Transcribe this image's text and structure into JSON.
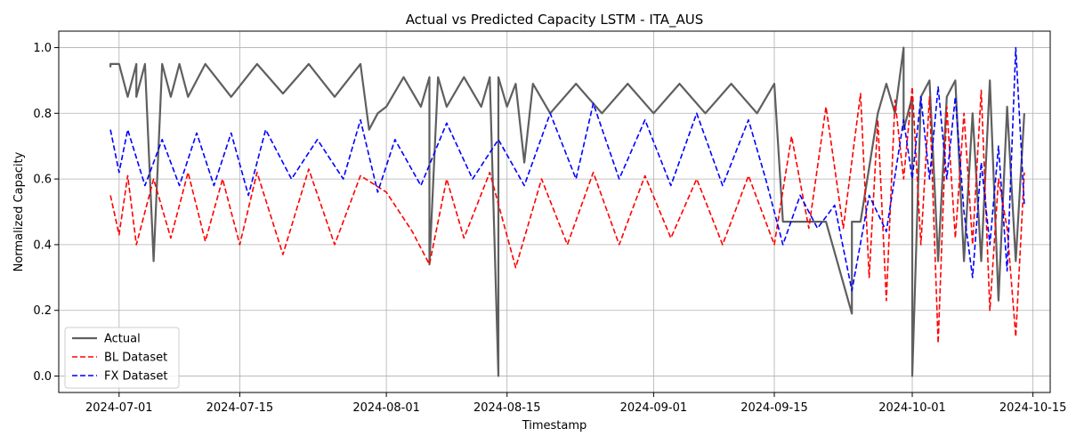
{
  "chart_data": {
    "type": "line",
    "title": "Actual vs Predicted Capacity LSTM - ITA_AUS",
    "xlabel": "Timestamp",
    "ylabel": "Normalized Capacity",
    "xlim": [
      "2024-06-24",
      "2024-10-17"
    ],
    "ylim": [
      -0.05,
      1.05
    ],
    "x_ticks": [
      "2024-07-01",
      "2024-07-15",
      "2024-08-01",
      "2024-08-15",
      "2024-09-01",
      "2024-09-15",
      "2024-10-01",
      "2024-10-15"
    ],
    "y_ticks": [
      0.0,
      0.2,
      0.4,
      0.6,
      0.8,
      1.0
    ],
    "y_tick_labels": [
      "0.0",
      "0.2",
      "0.4",
      "0.6",
      "0.8",
      "1.0"
    ],
    "grid": true,
    "legend_position": "lower-left",
    "series": [
      {
        "name": "Actual",
        "color": "#5f5f5f",
        "style": "solid",
        "x": [
          "2024-06-30",
          "2024-06-30",
          "2024-07-01",
          "2024-07-02",
          "2024-07-03",
          "2024-07-03",
          "2024-07-04",
          "2024-07-05",
          "2024-07-06",
          "2024-07-07",
          "2024-07-08",
          "2024-07-09",
          "2024-07-11",
          "2024-07-14",
          "2024-07-17",
          "2024-07-20",
          "2024-07-23",
          "2024-07-26",
          "2024-07-29",
          "2024-07-30",
          "2024-07-31",
          "2024-08-01",
          "2024-08-03",
          "2024-08-05",
          "2024-08-06",
          "2024-08-06",
          "2024-08-07",
          "2024-08-08",
          "2024-08-10",
          "2024-08-12",
          "2024-08-13",
          "2024-08-14",
          "2024-08-14",
          "2024-08-15",
          "2024-08-16",
          "2024-08-17",
          "2024-08-18",
          "2024-08-20",
          "2024-08-23",
          "2024-08-26",
          "2024-08-29",
          "2024-09-01",
          "2024-09-04",
          "2024-09-07",
          "2024-09-10",
          "2024-09-13",
          "2024-09-15",
          "2024-09-16",
          "2024-09-18",
          "2024-09-21",
          "2024-09-24",
          "2024-09-24",
          "2024-09-25",
          "2024-09-27",
          "2024-09-28",
          "2024-09-29",
          "2024-09-30",
          "2024-09-30",
          "2024-10-01",
          "2024-10-01",
          "2024-10-02",
          "2024-10-03",
          "2024-10-04",
          "2024-10-05",
          "2024-10-06",
          "2024-10-07",
          "2024-10-08",
          "2024-10-09",
          "2024-10-10",
          "2024-10-11",
          "2024-10-12",
          "2024-10-13",
          "2024-10-14"
        ],
        "y": [
          0.94,
          0.95,
          0.95,
          0.85,
          0.95,
          0.85,
          0.95,
          0.35,
          0.95,
          0.85,
          0.95,
          0.85,
          0.95,
          0.85,
          0.95,
          0.86,
          0.95,
          0.85,
          0.95,
          0.75,
          0.8,
          0.82,
          0.91,
          0.82,
          0.91,
          0.34,
          0.91,
          0.82,
          0.91,
          0.82,
          0.91,
          0.0,
          0.91,
          0.82,
          0.89,
          0.65,
          0.89,
          0.8,
          0.89,
          0.8,
          0.89,
          0.8,
          0.89,
          0.8,
          0.89,
          0.8,
          0.89,
          0.47,
          0.47,
          0.47,
          0.19,
          0.47,
          0.47,
          0.8,
          0.89,
          0.8,
          1.0,
          0.75,
          0.85,
          0.0,
          0.85,
          0.9,
          0.35,
          0.85,
          0.9,
          0.35,
          0.8,
          0.35,
          0.9,
          0.23,
          0.82,
          0.35,
          0.8
        ]
      },
      {
        "name": "BL Dataset",
        "color": "#ff0000",
        "style": "dashed",
        "x": [
          "2024-06-30",
          "2024-07-01",
          "2024-07-02",
          "2024-07-03",
          "2024-07-05",
          "2024-07-07",
          "2024-07-09",
          "2024-07-11",
          "2024-07-13",
          "2024-07-15",
          "2024-07-17",
          "2024-07-20",
          "2024-07-23",
          "2024-07-26",
          "2024-07-29",
          "2024-08-01",
          "2024-08-04",
          "2024-08-06",
          "2024-08-08",
          "2024-08-10",
          "2024-08-13",
          "2024-08-16",
          "2024-08-19",
          "2024-08-22",
          "2024-08-25",
          "2024-08-28",
          "2024-08-31",
          "2024-09-03",
          "2024-09-06",
          "2024-09-09",
          "2024-09-12",
          "2024-09-15",
          "2024-09-17",
          "2024-09-19",
          "2024-09-21",
          "2024-09-23",
          "2024-09-25",
          "2024-09-26",
          "2024-09-27",
          "2024-09-28",
          "2024-09-29",
          "2024-09-30",
          "2024-10-01",
          "2024-10-02",
          "2024-10-03",
          "2024-10-04",
          "2024-10-05",
          "2024-10-06",
          "2024-10-07",
          "2024-10-08",
          "2024-10-09",
          "2024-10-10",
          "2024-10-11",
          "2024-10-12",
          "2024-10-13",
          "2024-10-14"
        ],
        "y": [
          0.55,
          0.43,
          0.61,
          0.4,
          0.6,
          0.42,
          0.62,
          0.41,
          0.6,
          0.4,
          0.62,
          0.37,
          0.63,
          0.4,
          0.61,
          0.56,
          0.44,
          0.34,
          0.6,
          0.42,
          0.62,
          0.33,
          0.6,
          0.4,
          0.62,
          0.4,
          0.61,
          0.42,
          0.6,
          0.4,
          0.61,
          0.4,
          0.73,
          0.45,
          0.82,
          0.45,
          0.86,
          0.3,
          0.78,
          0.23,
          0.84,
          0.6,
          0.88,
          0.4,
          0.85,
          0.1,
          0.82,
          0.42,
          0.8,
          0.4,
          0.87,
          0.2,
          0.6,
          0.45,
          0.12,
          0.62
        ]
      },
      {
        "name": "FX Dataset",
        "color": "#0000ff",
        "style": "dashed",
        "x": [
          "2024-06-30",
          "2024-07-01",
          "2024-07-02",
          "2024-07-04",
          "2024-07-06",
          "2024-07-08",
          "2024-07-10",
          "2024-07-12",
          "2024-07-14",
          "2024-07-16",
          "2024-07-18",
          "2024-07-21",
          "2024-07-24",
          "2024-07-27",
          "2024-07-29",
          "2024-07-31",
          "2024-08-02",
          "2024-08-05",
          "2024-08-08",
          "2024-08-11",
          "2024-08-14",
          "2024-08-17",
          "2024-08-20",
          "2024-08-23",
          "2024-08-25",
          "2024-08-28",
          "2024-08-31",
          "2024-09-03",
          "2024-09-06",
          "2024-09-09",
          "2024-09-12",
          "2024-09-14",
          "2024-09-16",
          "2024-09-18",
          "2024-09-20",
          "2024-09-22",
          "2024-09-24",
          "2024-09-26",
          "2024-09-28",
          "2024-09-30",
          "2024-10-01",
          "2024-10-02",
          "2024-10-03",
          "2024-10-04",
          "2024-10-05",
          "2024-10-06",
          "2024-10-07",
          "2024-10-08",
          "2024-10-09",
          "2024-10-10",
          "2024-10-11",
          "2024-10-12",
          "2024-10-13",
          "2024-10-14"
        ],
        "y": [
          0.75,
          0.62,
          0.75,
          0.58,
          0.72,
          0.58,
          0.74,
          0.58,
          0.74,
          0.55,
          0.75,
          0.6,
          0.72,
          0.6,
          0.78,
          0.56,
          0.72,
          0.58,
          0.77,
          0.6,
          0.72,
          0.58,
          0.8,
          0.6,
          0.83,
          0.6,
          0.78,
          0.58,
          0.8,
          0.58,
          0.78,
          0.6,
          0.4,
          0.55,
          0.45,
          0.52,
          0.26,
          0.55,
          0.44,
          0.78,
          0.6,
          0.85,
          0.6,
          0.88,
          0.6,
          0.85,
          0.5,
          0.3,
          0.65,
          0.4,
          0.7,
          0.32,
          1.0,
          0.52
        ]
      }
    ]
  }
}
